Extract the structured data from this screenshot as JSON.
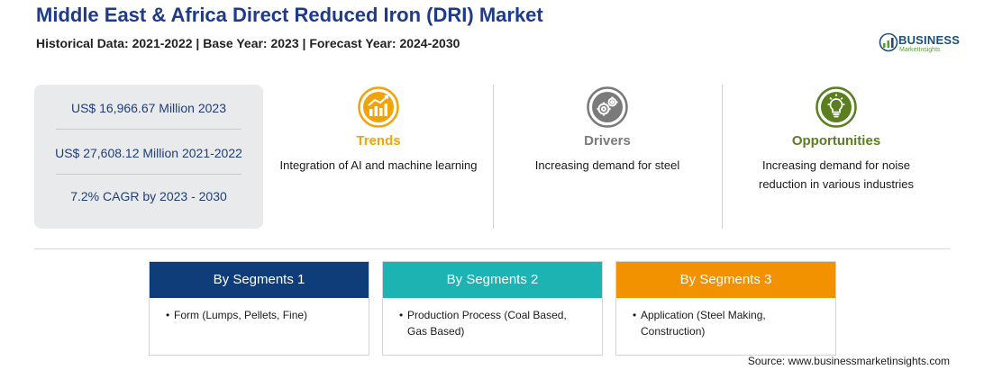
{
  "header": {
    "title": "Middle East & Africa Direct Reduced Iron (DRI) Market",
    "subtitle": "Historical Data: 2021-2022 | Base Year: 2023 | Forecast Year: 2024-2030"
  },
  "logo": {
    "wordmark": "BUSINESS",
    "tagline": "MarketInsights"
  },
  "stats": [
    {
      "text": "US$ 16,966.67 Million 2023"
    },
    {
      "text": "US$ 27,608.12 Million 2021-2022"
    },
    {
      "text": "7.2% CAGR by 2023 - 2030"
    }
  ],
  "pillars": [
    {
      "title": "Trends",
      "description": "Integration of AI and machine learning",
      "color": "#f0a30a",
      "icon": "chart-trend-icon"
    },
    {
      "title": "Drivers",
      "description": "Increasing demand for steel",
      "color": "#7a7a7a",
      "icon": "gears-icon"
    },
    {
      "title": "Opportunities",
      "description": "Increasing demand for noise reduction in various industries",
      "color": "#5a7f1e",
      "icon": "lightbulb-icon"
    }
  ],
  "segments": [
    {
      "title": "By Segments 1",
      "color": "#0f3d7a",
      "items": [
        "Form (Lumps, Pellets, Fine)"
      ]
    },
    {
      "title": "By Segments 2",
      "color": "#1db3b3",
      "items": [
        "Production Process (Coal Based, Gas Based)"
      ]
    },
    {
      "title": "By Segments 3",
      "color": "#f39200",
      "items": [
        "Application (Steel Making, Construction)"
      ]
    }
  ],
  "source": "Source: www.businessmarketinsights.com"
}
